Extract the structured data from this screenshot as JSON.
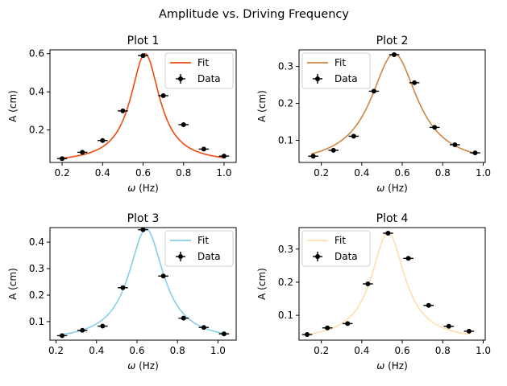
{
  "suptitle": "Amplitude vs. Driving Frequency",
  "colors": {
    "data": "#000000",
    "axes": "#000000"
  },
  "chart_data": [
    {
      "type": "line",
      "title": "Plot 1",
      "xlabel_symbol": "ω",
      "xlabel_unit": " (Hz)",
      "ylabel": "A (cm)",
      "xlim": [
        0.14,
        1.06
      ],
      "ylim": [
        0.03,
        0.62
      ],
      "xticks": [
        0.2,
        0.4,
        0.6,
        0.8,
        1.0
      ],
      "xtick_labels": [
        "0.2",
        "0.4",
        "0.6",
        "0.8",
        "1.0"
      ],
      "yticks": [
        0.2,
        0.4,
        0.6
      ],
      "ytick_labels": [
        "0.2",
        "0.4",
        "0.6"
      ],
      "legend": {
        "position": "top-right",
        "fit_label": "Fit",
        "data_label": "Data"
      },
      "fit": {
        "color": "#f04a0a",
        "peak_x": 0.61,
        "peak_y": 0.6,
        "half_width": 0.0875,
        "x_range": [
          0.2,
          1.0
        ]
      },
      "data": {
        "x": [
          0.2,
          0.3,
          0.4,
          0.5,
          0.6,
          0.7,
          0.8,
          0.9,
          1.0
        ],
        "y": [
          0.05,
          0.083,
          0.145,
          0.3,
          0.59,
          0.38,
          0.228,
          0.1,
          0.063
        ],
        "xerr": 0.025,
        "yerr": 0.008
      }
    },
    {
      "type": "line",
      "title": "Plot 2",
      "xlabel_symbol": "ω",
      "xlabel_unit": " (Hz)",
      "ylabel": "A (cm)",
      "xlim": [
        0.09,
        1.01
      ],
      "ylim": [
        0.04,
        0.345
      ],
      "xticks": [
        0.2,
        0.4,
        0.6,
        0.8,
        1.0
      ],
      "xtick_labels": [
        "0.2",
        "0.4",
        "0.6",
        "0.8",
        "1.0"
      ],
      "yticks": [
        0.1,
        0.2,
        0.3
      ],
      "ytick_labels": [
        "0.1",
        "0.2",
        "0.3"
      ],
      "legend": {
        "position": "top-left",
        "fit_label": "Fit",
        "data_label": "Data"
      },
      "fit": {
        "color": "#cd853f",
        "peak_x": 0.56,
        "peak_y": 0.335,
        "half_width": 0.14,
        "x_range": [
          0.15,
          0.96
        ]
      },
      "data": {
        "x": [
          0.16,
          0.26,
          0.36,
          0.46,
          0.56,
          0.66,
          0.76,
          0.86,
          0.96
        ],
        "y": [
          0.057,
          0.073,
          0.111,
          0.233,
          0.332,
          0.256,
          0.135,
          0.088,
          0.066
        ],
        "xerr": 0.025,
        "yerr": 0.004
      }
    },
    {
      "type": "line",
      "title": "Plot 3",
      "xlabel_symbol": "ω",
      "xlabel_unit": " (Hz)",
      "ylabel": "A (cm)",
      "xlim": [
        0.17,
        1.09
      ],
      "ylim": [
        0.03,
        0.455
      ],
      "xticks": [
        0.2,
        0.4,
        0.6,
        0.8,
        1.0
      ],
      "xtick_labels": [
        "0.2",
        "0.4",
        "0.6",
        "0.8",
        "1.0"
      ],
      "yticks": [
        0.1,
        0.2,
        0.3,
        0.4
      ],
      "ytick_labels": [
        "0.1",
        "0.2",
        "0.3",
        "0.4"
      ],
      "legend": {
        "position": "top-right",
        "fit_label": "Fit",
        "data_label": "Data"
      },
      "fit": {
        "color": "#87ceeb",
        "peak_x": 0.645,
        "peak_y": 0.45,
        "half_width": 0.105,
        "x_range": [
          0.23,
          1.03
        ]
      },
      "data": {
        "x": [
          0.23,
          0.33,
          0.43,
          0.53,
          0.63,
          0.73,
          0.83,
          0.93,
          1.03
        ],
        "y": [
          0.047,
          0.067,
          0.083,
          0.228,
          0.447,
          0.272,
          0.113,
          0.078,
          0.054
        ],
        "xerr": 0.025,
        "yerr": 0.004
      }
    },
    {
      "type": "line",
      "title": "Plot 4",
      "xlabel_symbol": "ω",
      "xlabel_unit": " (Hz)",
      "ylabel": "A (cm)",
      "xlim": [
        0.09,
        1.01
      ],
      "ylim": [
        0.025,
        0.365
      ],
      "xticks": [
        0.2,
        0.4,
        0.6,
        0.8,
        1.0
      ],
      "xtick_labels": [
        "0.2",
        "0.4",
        "0.6",
        "0.8",
        "1.0"
      ],
      "yticks": [
        0.1,
        0.2,
        0.3
      ],
      "ytick_labels": [
        "0.1",
        "0.2",
        "0.3"
      ],
      "legend": {
        "position": "top-left",
        "fit_label": "Fit",
        "data_label": "Data"
      },
      "fit": {
        "color": "#ffdead",
        "peak_x": 0.53,
        "peak_y": 0.35,
        "half_width": 0.1,
        "x_range": [
          0.13,
          0.93
        ]
      },
      "data": {
        "x": [
          0.13,
          0.23,
          0.33,
          0.43,
          0.53,
          0.63,
          0.73,
          0.83,
          0.93
        ],
        "y": [
          0.042,
          0.062,
          0.075,
          0.195,
          0.348,
          0.272,
          0.13,
          0.067,
          0.052
        ],
        "xerr": 0.025,
        "yerr": 0.004
      }
    }
  ]
}
